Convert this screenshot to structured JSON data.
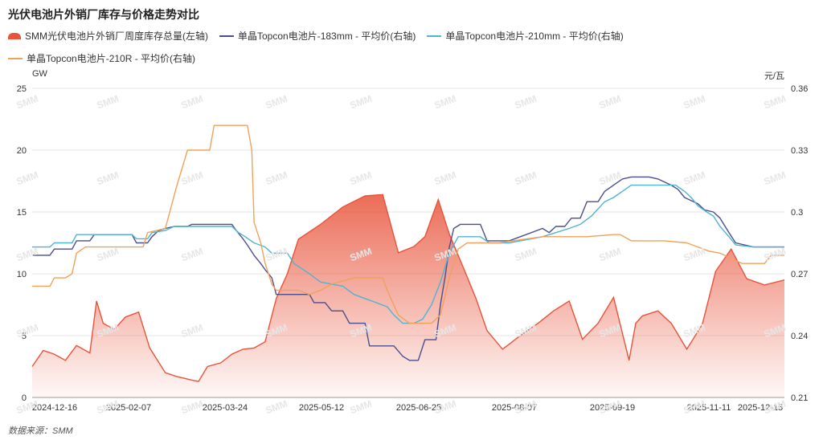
{
  "title": "光伏电池片外销厂库存与价格走势对比",
  "source": "数据来源：SMM",
  "watermark": "SMM",
  "chart_data": {
    "type": "line",
    "ylabel_left": "GW",
    "ylabel_right": "元/瓦",
    "ylim_left": [
      0,
      25
    ],
    "ylim_right": [
      0.21,
      0.36
    ],
    "yticks_left": [
      "0",
      "5",
      "10",
      "15",
      "20",
      "25"
    ],
    "yticks_right": [
      "0.21",
      "0.24",
      "0.27",
      "0.3",
      "0.33",
      "0.36"
    ],
    "xticks": [
      "2024-12-16",
      "2025-02-07",
      "2025-03-24",
      "2025-05-12",
      "2025-06-25",
      "2025-08-07",
      "2025-09-19",
      "2025-11-11",
      "2025-12-15"
    ],
    "grid": "horizontal",
    "legend_position": "top",
    "series": [
      {
        "name": "SMM光伏电池片外销厂周度库存总量(左轴)",
        "kind": "area",
        "axis": "left",
        "color": "#e8533a",
        "points": [
          [
            0,
            2.5
          ],
          [
            0.05,
            3.8
          ],
          [
            0.1,
            3.5
          ],
          [
            0.15,
            3.0
          ],
          [
            0.2,
            4.2
          ],
          [
            0.26,
            3.6
          ],
          [
            0.29,
            7.8
          ],
          [
            0.32,
            6.0
          ],
          [
            0.37,
            5.5
          ],
          [
            0.42,
            6.5
          ],
          [
            0.48,
            6.9
          ],
          [
            0.53,
            4.0
          ],
          [
            0.6,
            2.0
          ],
          [
            0.65,
            1.7
          ],
          [
            0.72,
            1.4
          ],
          [
            0.75,
            1.3
          ],
          [
            0.79,
            2.5
          ],
          [
            0.85,
            2.8
          ],
          [
            0.9,
            3.5
          ],
          [
            0.95,
            3.9
          ],
          [
            1.0,
            4.0
          ],
          [
            1.05,
            4.5
          ],
          [
            1.1,
            8.0
          ],
          [
            1.15,
            10.0
          ],
          [
            1.2,
            12.8
          ],
          [
            1.3,
            14.0
          ],
          [
            1.4,
            15.4
          ],
          [
            1.5,
            16.3
          ],
          [
            1.58,
            16.4
          ],
          [
            1.65,
            11.7
          ],
          [
            1.72,
            12.2
          ],
          [
            1.77,
            13.0
          ],
          [
            1.83,
            16.0
          ],
          [
            1.88,
            13.2
          ],
          [
            1.95,
            10.2
          ],
          [
            2.0,
            8.0
          ],
          [
            2.05,
            5.4
          ],
          [
            2.12,
            3.9
          ],
          [
            2.2,
            5.0
          ],
          [
            2.28,
            6.0
          ],
          [
            2.35,
            7.0
          ],
          [
            2.42,
            7.8
          ],
          [
            2.48,
            4.7
          ],
          [
            2.55,
            6.0
          ],
          [
            2.62,
            8.1
          ],
          [
            2.69,
            3.0
          ],
          [
            2.72,
            6.0
          ],
          [
            2.75,
            6.6
          ],
          [
            2.82,
            7.0
          ],
          [
            2.88,
            6.0
          ],
          [
            2.95,
            3.9
          ],
          [
            3.02,
            5.9
          ],
          [
            3.08,
            10.2
          ],
          [
            3.15,
            12.0
          ],
          [
            3.22,
            9.6
          ],
          [
            3.3,
            9.1
          ],
          [
            3.39,
            9.5
          ]
        ]
      },
      {
        "name": "单晶Topcon电池片-183mm - 平均价(右轴)",
        "kind": "line",
        "axis": "right",
        "color": "#4a4f8c",
        "points": [
          [
            0,
            0.279
          ],
          [
            0.08,
            0.279
          ],
          [
            0.1,
            0.282
          ],
          [
            0.18,
            0.282
          ],
          [
            0.2,
            0.286
          ],
          [
            0.26,
            0.286
          ],
          [
            0.28,
            0.289
          ],
          [
            0.45,
            0.289
          ],
          [
            0.47,
            0.285
          ],
          [
            0.52,
            0.285
          ],
          [
            0.54,
            0.288
          ],
          [
            0.57,
            0.291
          ],
          [
            0.6,
            0.292
          ],
          [
            0.64,
            0.293
          ],
          [
            0.7,
            0.293
          ],
          [
            0.72,
            0.294
          ],
          [
            0.78,
            0.294
          ],
          [
            0.9,
            0.294
          ],
          [
            0.92,
            0.291
          ],
          [
            0.95,
            0.287
          ],
          [
            0.97,
            0.284
          ],
          [
            1.0,
            0.279
          ],
          [
            1.03,
            0.275
          ],
          [
            1.05,
            0.272
          ],
          [
            1.08,
            0.268
          ],
          [
            1.1,
            0.26
          ],
          [
            1.25,
            0.26
          ],
          [
            1.27,
            0.256
          ],
          [
            1.32,
            0.256
          ],
          [
            1.35,
            0.252
          ],
          [
            1.4,
            0.252
          ],
          [
            1.43,
            0.246
          ],
          [
            1.5,
            0.246
          ],
          [
            1.52,
            0.235
          ],
          [
            1.63,
            0.235
          ],
          [
            1.67,
            0.23
          ],
          [
            1.7,
            0.228
          ],
          [
            1.74,
            0.228
          ],
          [
            1.77,
            0.238
          ],
          [
            1.82,
            0.238
          ],
          [
            1.84,
            0.255
          ],
          [
            1.86,
            0.268
          ],
          [
            1.88,
            0.283
          ],
          [
            1.9,
            0.292
          ],
          [
            1.93,
            0.294
          ],
          [
            2.02,
            0.294
          ],
          [
            2.05,
            0.286
          ],
          [
            2.15,
            0.286
          ],
          [
            2.2,
            0.288
          ],
          [
            2.3,
            0.292
          ],
          [
            2.33,
            0.29
          ],
          [
            2.36,
            0.293
          ],
          [
            2.4,
            0.293
          ],
          [
            2.43,
            0.297
          ],
          [
            2.47,
            0.297
          ],
          [
            2.5,
            0.305
          ],
          [
            2.55,
            0.305
          ],
          [
            2.58,
            0.31
          ],
          [
            2.62,
            0.313
          ],
          [
            2.66,
            0.316
          ],
          [
            2.7,
            0.317
          ],
          [
            2.78,
            0.317
          ],
          [
            2.82,
            0.316
          ],
          [
            2.88,
            0.313
          ],
          [
            2.91,
            0.311
          ],
          [
            2.94,
            0.307
          ],
          [
            3.0,
            0.304
          ],
          [
            3.03,
            0.301
          ],
          [
            3.07,
            0.3
          ],
          [
            3.1,
            0.297
          ],
          [
            3.14,
            0.29
          ],
          [
            3.17,
            0.285
          ],
          [
            3.25,
            0.283
          ],
          [
            3.39,
            0.283
          ]
        ]
      },
      {
        "name": "单晶Topcon电池片-210mm - 平均价(右轴)",
        "kind": "line",
        "axis": "right",
        "color": "#4fb3d4",
        "points": [
          [
            0,
            0.283
          ],
          [
            0.08,
            0.283
          ],
          [
            0.1,
            0.285
          ],
          [
            0.18,
            0.285
          ],
          [
            0.2,
            0.289
          ],
          [
            0.45,
            0.289
          ],
          [
            0.47,
            0.287
          ],
          [
            0.52,
            0.287
          ],
          [
            0.54,
            0.29
          ],
          [
            0.6,
            0.291
          ],
          [
            0.64,
            0.293
          ],
          [
            0.78,
            0.293
          ],
          [
            0.9,
            0.293
          ],
          [
            0.93,
            0.29
          ],
          [
            0.96,
            0.288
          ],
          [
            1.0,
            0.285
          ],
          [
            1.05,
            0.283
          ],
          [
            1.08,
            0.28
          ],
          [
            1.15,
            0.28
          ],
          [
            1.18,
            0.275
          ],
          [
            1.25,
            0.27
          ],
          [
            1.3,
            0.266
          ],
          [
            1.4,
            0.264
          ],
          [
            1.45,
            0.26
          ],
          [
            1.5,
            0.258
          ],
          [
            1.55,
            0.256
          ],
          [
            1.6,
            0.254
          ],
          [
            1.63,
            0.25
          ],
          [
            1.67,
            0.246
          ],
          [
            1.72,
            0.246
          ],
          [
            1.76,
            0.248
          ],
          [
            1.8,
            0.255
          ],
          [
            1.84,
            0.266
          ],
          [
            1.88,
            0.28
          ],
          [
            1.92,
            0.288
          ],
          [
            2.02,
            0.288
          ],
          [
            2.06,
            0.285
          ],
          [
            2.15,
            0.285
          ],
          [
            2.2,
            0.286
          ],
          [
            2.3,
            0.288
          ],
          [
            2.36,
            0.29
          ],
          [
            2.42,
            0.292
          ],
          [
            2.47,
            0.294
          ],
          [
            2.52,
            0.298
          ],
          [
            2.58,
            0.305
          ],
          [
            2.62,
            0.307
          ],
          [
            2.66,
            0.31
          ],
          [
            2.7,
            0.313
          ],
          [
            2.78,
            0.313
          ],
          [
            2.9,
            0.313
          ],
          [
            2.94,
            0.31
          ],
          [
            2.97,
            0.307
          ],
          [
            3.0,
            0.303
          ],
          [
            3.04,
            0.3
          ],
          [
            3.07,
            0.298
          ],
          [
            3.1,
            0.293
          ],
          [
            3.14,
            0.288
          ],
          [
            3.17,
            0.284
          ],
          [
            3.25,
            0.283
          ],
          [
            3.39,
            0.283
          ]
        ]
      },
      {
        "name": "单晶Topcon电池片-210R - 平均价(右轴)",
        "kind": "line",
        "axis": "right",
        "color": "#f0a15a",
        "points": [
          [
            0,
            0.264
          ],
          [
            0.08,
            0.264
          ],
          [
            0.1,
            0.268
          ],
          [
            0.15,
            0.268
          ],
          [
            0.18,
            0.27
          ],
          [
            0.2,
            0.28
          ],
          [
            0.24,
            0.283
          ],
          [
            0.28,
            0.283
          ],
          [
            0.45,
            0.283
          ],
          [
            0.5,
            0.283
          ],
          [
            0.52,
            0.29
          ],
          [
            0.6,
            0.292
          ],
          [
            0.65,
            0.312
          ],
          [
            0.7,
            0.33
          ],
          [
            0.8,
            0.33
          ],
          [
            0.82,
            0.342
          ],
          [
            0.97,
            0.342
          ],
          [
            0.99,
            0.33
          ],
          [
            1.0,
            0.295
          ],
          [
            1.03,
            0.285
          ],
          [
            1.05,
            0.275
          ],
          [
            1.08,
            0.265
          ],
          [
            1.1,
            0.262
          ],
          [
            1.2,
            0.262
          ],
          [
            1.25,
            0.26
          ],
          [
            1.3,
            0.262
          ],
          [
            1.35,
            0.265
          ],
          [
            1.45,
            0.268
          ],
          [
            1.58,
            0.268
          ],
          [
            1.6,
            0.262
          ],
          [
            1.65,
            0.25
          ],
          [
            1.7,
            0.246
          ],
          [
            1.8,
            0.246
          ],
          [
            1.84,
            0.25
          ],
          [
            1.88,
            0.268
          ],
          [
            1.92,
            0.282
          ],
          [
            1.96,
            0.285
          ],
          [
            2.02,
            0.285
          ],
          [
            2.1,
            0.285
          ],
          [
            2.3,
            0.288
          ],
          [
            2.5,
            0.288
          ],
          [
            2.62,
            0.289
          ],
          [
            2.65,
            0.289
          ],
          [
            2.7,
            0.286
          ],
          [
            2.85,
            0.286
          ],
          [
            2.95,
            0.285
          ],
          [
            3.0,
            0.283
          ],
          [
            3.05,
            0.281
          ],
          [
            3.1,
            0.28
          ],
          [
            3.2,
            0.275
          ],
          [
            3.3,
            0.275
          ],
          [
            3.33,
            0.279
          ],
          [
            3.39,
            0.279
          ]
        ]
      }
    ]
  }
}
